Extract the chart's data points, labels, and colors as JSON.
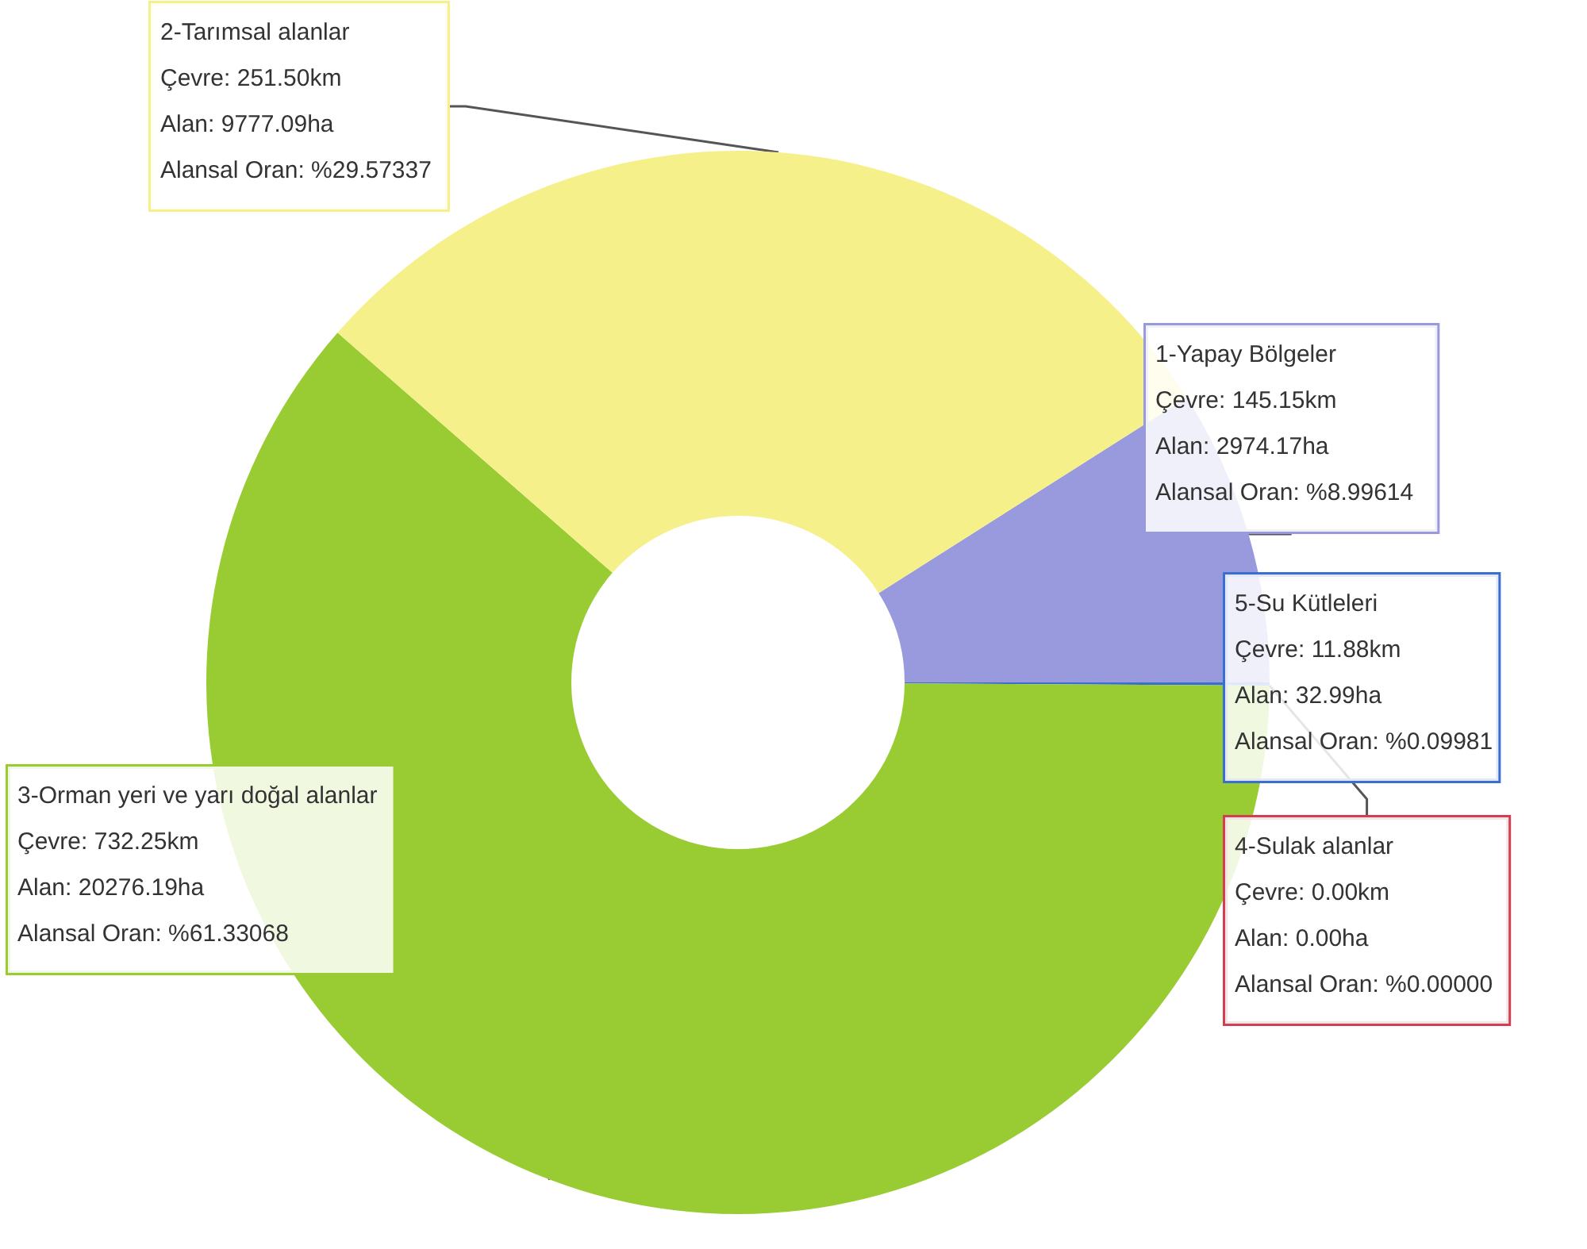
{
  "chart_data": {
    "type": "donut",
    "categories": [
      "1-Yapay Bölgeler",
      "5-Su Kütleleri",
      "4-Sulak alanlar",
      "3-Orman yeri ve yarı doğal alanlar",
      "2-Tarımsal alanlar"
    ],
    "values": [
      2974.17,
      32.99,
      0.0,
      20276.19,
      9777.09
    ],
    "colors": [
      "#9999dd",
      "#3a6fd0",
      "#d04050",
      "#99cc33",
      "#f5f08a"
    ],
    "value_labels": [
      "Çevre: 145.15km\nAlan: 2974.17ha\nAlansal Oran: %8.99614",
      "Çevre: 11.88km\nAlan: 32.99ha\nAlansal Oran: %0.09981",
      "Çevre: 0.00km\nAlan: 0.00ha\nAlansal Oran: %0.00000",
      "Çevre: 732.25km\nAlan: 20276.19ha\nAlansal Oran: %61.33068",
      "Çevre: 251.50km\nAlan: 9777.09ha\nAlansal Oran: %29.57337"
    ],
    "legend": false
  }
}
